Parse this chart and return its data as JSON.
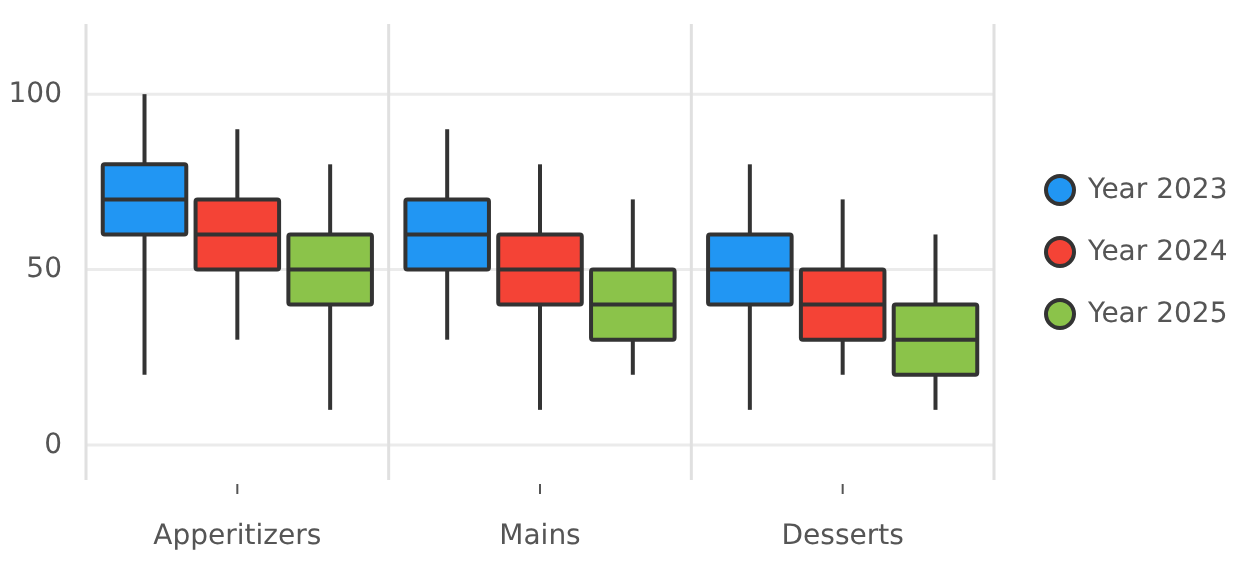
{
  "chart_data": {
    "type": "box",
    "categories": [
      "Apperitizers",
      "Mains",
      "Desserts"
    ],
    "series": [
      {
        "name": "Year 2023",
        "color": "#2196f3",
        "boxes": [
          {
            "low": 20,
            "q1": 60,
            "median": 70,
            "q3": 80,
            "high": 100
          },
          {
            "low": 30,
            "q1": 50,
            "median": 60,
            "q3": 70,
            "high": 90
          },
          {
            "low": 10,
            "q1": 40,
            "median": 50,
            "q3": 60,
            "high": 80
          }
        ]
      },
      {
        "name": "Year 2024",
        "color": "#f44336",
        "boxes": [
          {
            "low": 30,
            "q1": 50,
            "median": 60,
            "q3": 70,
            "high": 90
          },
          {
            "low": 10,
            "q1": 40,
            "median": 50,
            "q3": 60,
            "high": 80
          },
          {
            "low": 20,
            "q1": 30,
            "median": 40,
            "q3": 50,
            "high": 70
          }
        ]
      },
      {
        "name": "Year 2025",
        "color": "#8bc34a",
        "boxes": [
          {
            "low": 10,
            "q1": 40,
            "median": 50,
            "q3": 60,
            "high": 80
          },
          {
            "low": 20,
            "q1": 30,
            "median": 40,
            "q3": 50,
            "high": 70
          },
          {
            "low": 10,
            "q1": 20,
            "median": 30,
            "q3": 40,
            "high": 60
          }
        ]
      }
    ],
    "ylim": [
      -10,
      120
    ],
    "yticks": [
      0,
      50,
      100
    ],
    "grid": true,
    "legend": "right"
  }
}
